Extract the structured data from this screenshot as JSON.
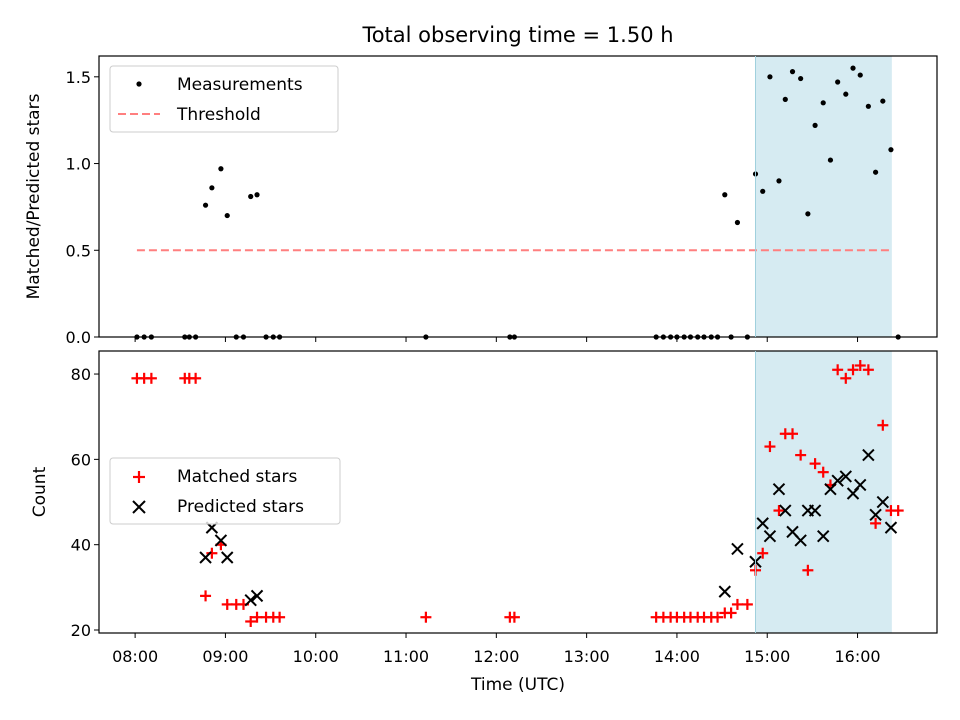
{
  "chart_data": [
    {
      "type": "scatter",
      "title": "Total observing time = 1.50 h",
      "xlabel": "",
      "ylabel": "Matched/Predicted stars",
      "ylim": [
        0,
        1.62
      ],
      "xlim": [
        7.6,
        16.88
      ],
      "yticks": [
        0.0,
        0.5,
        1.0,
        1.5
      ],
      "ytick_labels": [
        "0.0",
        "0.5",
        "1.0",
        "1.5"
      ],
      "legend_placement": "top-left",
      "shaded_interval": [
        14.87,
        16.38
      ],
      "shade_color": "#add8e6",
      "series": [
        {
          "name": "Measurements",
          "kind": "points",
          "color": "#000000",
          "x": [
            8.02,
            8.1,
            8.18,
            8.55,
            8.6,
            8.67,
            8.78,
            8.85,
            8.95,
            9.02,
            9.12,
            9.2,
            9.28,
            9.35,
            9.45,
            9.53,
            9.6,
            11.22,
            12.15,
            12.2,
            13.77,
            13.85,
            13.93,
            14.0,
            14.08,
            14.15,
            14.23,
            14.3,
            14.38,
            14.45,
            14.53,
            14.6,
            14.67,
            14.78,
            14.87,
            14.95,
            15.03,
            15.13,
            15.2,
            15.28,
            15.37,
            15.45,
            15.53,
            15.62,
            15.7,
            15.78,
            15.87,
            15.95,
            16.03,
            16.12,
            16.2,
            16.28,
            16.37,
            16.45
          ],
          "y": [
            0,
            0,
            0,
            0,
            0,
            0,
            0.76,
            0.86,
            0.97,
            0.7,
            0,
            0,
            0.81,
            0.82,
            0,
            0,
            0,
            0,
            0,
            0,
            0,
            0,
            0,
            0,
            0,
            0,
            0,
            0,
            0,
            0,
            0.82,
            0,
            0.66,
            0,
            0.94,
            0.84,
            1.5,
            0.9,
            1.37,
            1.53,
            1.49,
            0.71,
            1.22,
            1.35,
            1.02,
            1.47,
            1.4,
            1.55,
            1.51,
            1.33,
            0.95,
            1.36,
            1.08,
            0
          ]
        },
        {
          "name": "Threshold",
          "kind": "dashed-line",
          "color": "#ff7f7f",
          "x": [
            8.02,
            16.37
          ],
          "y": [
            0.5,
            0.5
          ]
        }
      ]
    },
    {
      "type": "scatter",
      "title": "",
      "xlabel": "Time (UTC)",
      "ylabel": "Count",
      "ylim": [
        19.3,
        85.4
      ],
      "xlim": [
        7.6,
        16.88
      ],
      "yticks": [
        20,
        40,
        60,
        80
      ],
      "ytick_labels": [
        "20",
        "40",
        "60",
        "80"
      ],
      "xticks": [
        8,
        9,
        10,
        11,
        12,
        13,
        14,
        15,
        16
      ],
      "xtick_labels": [
        "08:00",
        "09:00",
        "10:00",
        "11:00",
        "12:00",
        "13:00",
        "14:00",
        "15:00",
        "16:00"
      ],
      "legend_placement": "center-left",
      "shaded_interval": [
        14.87,
        16.38
      ],
      "shade_color": "#add8e6",
      "series": [
        {
          "name": "Matched stars",
          "kind": "plus",
          "color": "#ff0000",
          "x": [
            8.02,
            8.1,
            8.18,
            8.55,
            8.6,
            8.67,
            8.78,
            8.85,
            8.95,
            9.02,
            9.12,
            9.2,
            9.28,
            9.35,
            9.45,
            9.53,
            9.6,
            11.22,
            12.15,
            12.2,
            13.77,
            13.85,
            13.93,
            14.0,
            14.08,
            14.15,
            14.23,
            14.3,
            14.38,
            14.45,
            14.53,
            14.6,
            14.67,
            14.78,
            14.87,
            14.95,
            15.03,
            15.13,
            15.2,
            15.28,
            15.37,
            15.45,
            15.53,
            15.62,
            15.7,
            15.78,
            15.87,
            15.95,
            16.03,
            16.12,
            16.2,
            16.28,
            16.37,
            16.45
          ],
          "y": [
            79,
            79,
            79,
            79,
            79,
            79,
            28,
            38,
            40,
            26,
            26,
            26,
            22,
            23,
            23,
            23,
            23,
            23,
            23,
            23,
            23,
            23,
            23,
            23,
            23,
            23,
            23,
            23,
            23,
            23,
            24,
            24,
            26,
            26,
            34,
            38,
            63,
            48,
            66,
            66,
            61,
            34,
            59,
            57,
            54,
            81,
            79,
            81,
            82,
            81,
            45,
            68,
            48,
            48
          ]
        },
        {
          "name": "Predicted stars",
          "kind": "x",
          "color": "#000000",
          "x": [
            8.78,
            8.85,
            8.95,
            9.02,
            9.28,
            9.35,
            14.53,
            14.67,
            14.87,
            14.95,
            15.03,
            15.13,
            15.2,
            15.28,
            15.37,
            15.45,
            15.53,
            15.62,
            15.7,
            15.78,
            15.87,
            15.95,
            16.03,
            16.12,
            16.2,
            16.28,
            16.37
          ],
          "y": [
            37,
            44,
            41,
            37,
            27,
            28,
            29,
            39,
            36,
            45,
            42,
            53,
            48,
            43,
            41,
            48,
            48,
            42,
            53,
            55,
            56,
            52,
            54,
            61,
            47,
            50,
            44
          ]
        }
      ]
    }
  ]
}
